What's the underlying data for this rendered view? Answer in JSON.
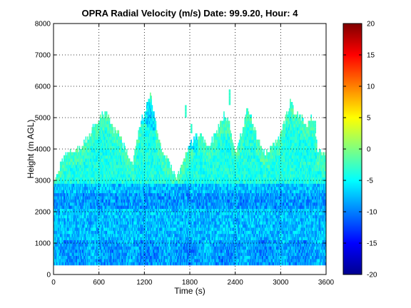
{
  "chart_data": {
    "type": "heatmap",
    "title": "OPRA Radial Velocity (m/s)  Date: 99.9.20, Hour: 4",
    "xlabel": "Time (s)",
    "ylabel": "Height (m AGL)",
    "xlim": [
      0,
      3600
    ],
    "ylim": [
      0,
      8000
    ],
    "x_ticks": [
      0,
      600,
      1200,
      1800,
      2400,
      3000,
      3600
    ],
    "y_ticks": [
      0,
      1000,
      2000,
      3000,
      4000,
      5000,
      6000,
      7000,
      8000
    ],
    "grid": true,
    "colormap": "jet",
    "colorbar": {
      "range": [
        -20,
        20
      ],
      "ticks": [
        -20,
        -15,
        -10,
        -5,
        0,
        5,
        10,
        15,
        20
      ],
      "placement": "right"
    },
    "data_height_range_m": [
      300,
      5800
    ],
    "velocity_description_m_s": {
      "below_2900m": "mostly -5 to -12 (light blue to blue)",
      "above_2900m": "mostly -2 to -6 (cyan to green-cyan)"
    },
    "cloud_top_profile": {
      "time_s": [
        0,
        60,
        150,
        250,
        350,
        450,
        550,
        620,
        680,
        730,
        780,
        850,
        950,
        1050,
        1100,
        1170,
        1230,
        1280,
        1350,
        1420,
        1500,
        1560,
        1620,
        1700,
        1780,
        1850,
        1950,
        2050,
        2150,
        2250,
        2320,
        2360,
        2400,
        2500,
        2550,
        2600,
        2700,
        2800,
        2900,
        3000,
        3060,
        3120,
        3180,
        3230,
        3300,
        3350,
        3420,
        3460,
        3480,
        3600
      ],
      "top_height_m": [
        2900,
        3200,
        3800,
        3900,
        4000,
        4300,
        4700,
        5000,
        5100,
        5000,
        4600,
        4500,
        3900,
        3500,
        4300,
        4900,
        5300,
        5700,
        4800,
        4000,
        3700,
        3300,
        3000,
        3500,
        3900,
        4300,
        4400,
        4000,
        4500,
        5000,
        4900,
        4200,
        3800,
        4600,
        5200,
        5000,
        4200,
        3800,
        4100,
        4400,
        4900,
        5400,
        5200,
        5000,
        4900,
        4700,
        5000,
        4500,
        4000,
        3800
      ]
    }
  }
}
